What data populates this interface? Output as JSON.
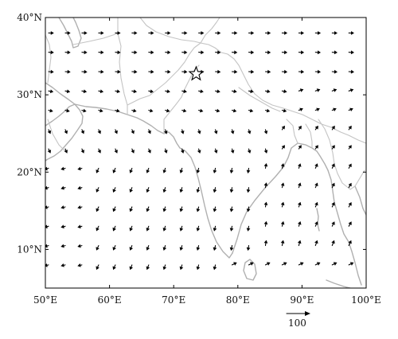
{
  "map": {
    "lon_range": [
      50,
      100
    ],
    "lat_range": [
      5,
      40
    ],
    "x_ticks": [
      {
        "lon": 50,
        "label": "50°E"
      },
      {
        "lon": 60,
        "label": "60°E"
      },
      {
        "lon": 70,
        "label": "70°E"
      },
      {
        "lon": 80,
        "label": "80°E"
      },
      {
        "lon": 90,
        "label": "90°E"
      },
      {
        "lon": 100,
        "label": "100°E"
      }
    ],
    "y_ticks": [
      {
        "lat": 40,
        "label": "40°N"
      },
      {
        "lat": 30,
        "label": "30°N"
      },
      {
        "lat": 20,
        "label": "20°N"
      },
      {
        "lat": 10,
        "label": "10°N"
      }
    ],
    "reference_vector": {
      "label": "100",
      "magnitude": 100
    },
    "marker": {
      "type": "star",
      "lon": 73.5,
      "lat": 32.7
    },
    "vector_scale_units_per_degree": 60,
    "colors": {
      "coastline": "#b0b0b0",
      "border": "#c4c4c4",
      "vectors": "#000000"
    }
  }
}
